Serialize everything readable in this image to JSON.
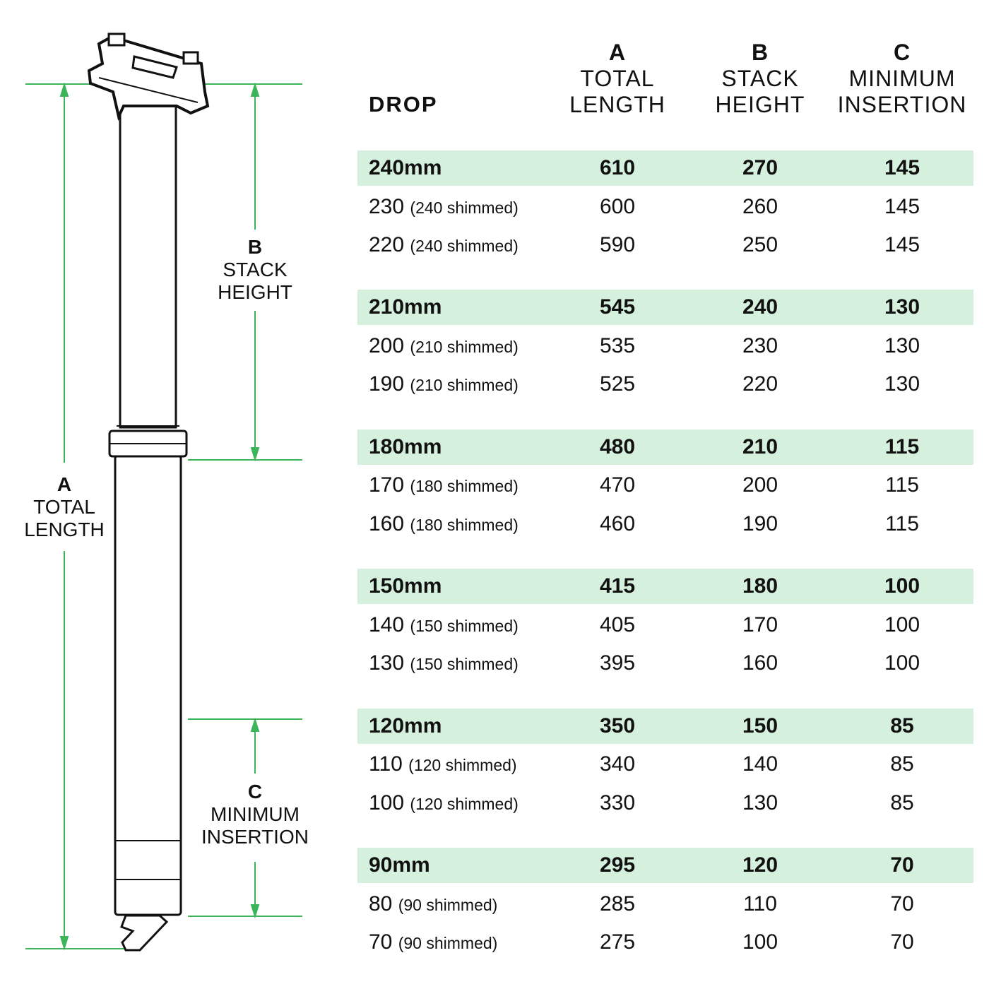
{
  "colors": {
    "accent": "#3cb55a",
    "highlight": "#d6f0de",
    "outline": "#111111"
  },
  "diagram": {
    "a": {
      "letter": "A",
      "line1": "TOTAL",
      "line2": "LENGTH"
    },
    "b": {
      "letter": "B",
      "line1": "STACK",
      "line2": "HEIGHT"
    },
    "c": {
      "letter": "C",
      "line1": "MINIMUM",
      "line2": "INSERTION"
    }
  },
  "table": {
    "drop_header": "DROP",
    "headers": [
      {
        "letter": "A",
        "line1": "TOTAL",
        "line2": "LENGTH"
      },
      {
        "letter": "B",
        "line1": "STACK",
        "line2": "HEIGHT"
      },
      {
        "letter": "C",
        "line1": "MINIMUM",
        "line2": "INSERTION"
      }
    ],
    "groups": [
      {
        "rows": [
          {
            "drop": "240mm",
            "note": "",
            "a": "610",
            "b": "270",
            "c": "145"
          },
          {
            "drop": "230",
            "note": "(240 shimmed)",
            "a": "600",
            "b": "260",
            "c": "145"
          },
          {
            "drop": "220",
            "note": "(240 shimmed)",
            "a": "590",
            "b": "250",
            "c": "145"
          }
        ]
      },
      {
        "rows": [
          {
            "drop": "210mm",
            "note": "",
            "a": "545",
            "b": "240",
            "c": "130"
          },
          {
            "drop": "200",
            "note": "(210 shimmed)",
            "a": "535",
            "b": "230",
            "c": "130"
          },
          {
            "drop": "190",
            "note": "(210 shimmed)",
            "a": "525",
            "b": "220",
            "c": "130"
          }
        ]
      },
      {
        "rows": [
          {
            "drop": "180mm",
            "note": "",
            "a": "480",
            "b": "210",
            "c": "115"
          },
          {
            "drop": "170",
            "note": "(180 shimmed)",
            "a": "470",
            "b": "200",
            "c": "115"
          },
          {
            "drop": "160",
            "note": "(180 shimmed)",
            "a": "460",
            "b": "190",
            "c": "115"
          }
        ]
      },
      {
        "rows": [
          {
            "drop": "150mm",
            "note": "",
            "a": "415",
            "b": "180",
            "c": "100"
          },
          {
            "drop": "140",
            "note": "(150 shimmed)",
            "a": "405",
            "b": "170",
            "c": "100"
          },
          {
            "drop": "130",
            "note": "(150 shimmed)",
            "a": "395",
            "b": "160",
            "c": "100"
          }
        ]
      },
      {
        "rows": [
          {
            "drop": "120mm",
            "note": "",
            "a": "350",
            "b": "150",
            "c": "85"
          },
          {
            "drop": "110",
            "note": "(120 shimmed)",
            "a": "340",
            "b": "140",
            "c": "85"
          },
          {
            "drop": "100",
            "note": "(120 shimmed)",
            "a": "330",
            "b": "130",
            "c": "85"
          }
        ]
      },
      {
        "rows": [
          {
            "drop": "90mm",
            "note": "",
            "a": "295",
            "b": "120",
            "c": "70"
          },
          {
            "drop": "80",
            "note": "(90 shimmed)",
            "a": "285",
            "b": "110",
            "c": "70"
          },
          {
            "drop": "70",
            "note": "(90 shimmed)",
            "a": "275",
            "b": "100",
            "c": "70"
          }
        ]
      }
    ]
  }
}
